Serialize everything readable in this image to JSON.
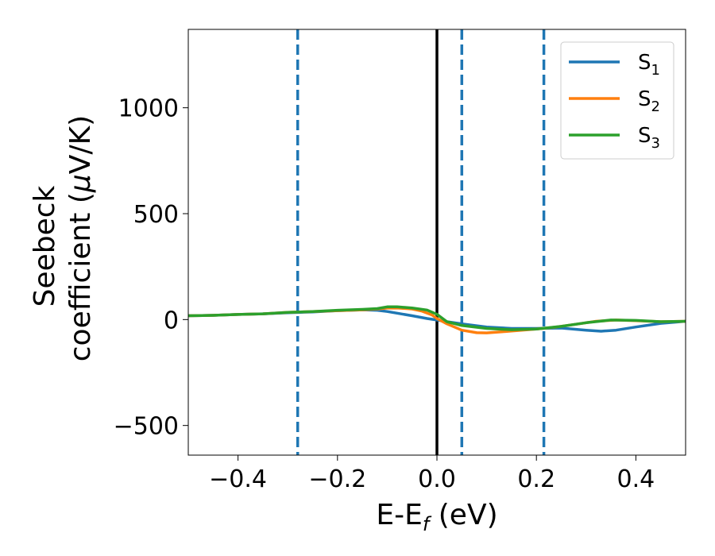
{
  "chart_data": {
    "type": "line",
    "title": "",
    "xlabel": "E-E",
    "xlabel_sub": "f",
    "xlabel_unit": " (eV)",
    "ylabel_line1": "Seebeck",
    "ylabel_line2": "coefficient  (",
    "ylabel_mu": "μ",
    "ylabel_unit": "V/K)",
    "xlim": [
      -0.5,
      0.5
    ],
    "ylim": [
      -640,
      1370
    ],
    "xticks": [
      -0.4,
      -0.2,
      0.0,
      0.2,
      0.4
    ],
    "xtick_labels": [
      "−0.4",
      "−0.2",
      "0.0",
      "0.2",
      "0.4"
    ],
    "yticks": [
      -500,
      0,
      500,
      1000
    ],
    "ytick_labels": [
      "−500",
      "0",
      "500",
      "1000"
    ],
    "grid": false,
    "legend_position": "top-right",
    "vertical_lines": [
      {
        "x": 0.0,
        "style": "solid",
        "color": "#000000"
      },
      {
        "x": -0.28,
        "style": "dashed",
        "color": "#1f77b4"
      },
      {
        "x": 0.05,
        "style": "dashed",
        "color": "#1f77b4"
      },
      {
        "x": 0.215,
        "style": "dashed",
        "color": "#1f77b4"
      }
    ],
    "series": [
      {
        "name": "S",
        "subscript": "1",
        "color": "#1f77b4",
        "points": [
          [
            -0.5,
            18
          ],
          [
            -0.45,
            20
          ],
          [
            -0.4,
            24
          ],
          [
            -0.35,
            27
          ],
          [
            -0.3,
            32
          ],
          [
            -0.25,
            36
          ],
          [
            -0.2,
            42
          ],
          [
            -0.15,
            46
          ],
          [
            -0.12,
            44
          ],
          [
            -0.1,
            38
          ],
          [
            -0.08,
            30
          ],
          [
            -0.05,
            18
          ],
          [
            -0.02,
            5
          ],
          [
            0.0,
            -2
          ],
          [
            0.02,
            -10
          ],
          [
            0.05,
            -20
          ],
          [
            0.1,
            -35
          ],
          [
            0.15,
            -42
          ],
          [
            0.2,
            -42
          ],
          [
            0.25,
            -40
          ],
          [
            0.3,
            -50
          ],
          [
            0.33,
            -55
          ],
          [
            0.36,
            -50
          ],
          [
            0.4,
            -35
          ],
          [
            0.45,
            -18
          ],
          [
            0.5,
            -8
          ]
        ]
      },
      {
        "name": "S",
        "subscript": "2",
        "color": "#ff7f0e",
        "points": [
          [
            -0.5,
            18
          ],
          [
            -0.45,
            20
          ],
          [
            -0.4,
            24
          ],
          [
            -0.35,
            27
          ],
          [
            -0.3,
            34
          ],
          [
            -0.25,
            38
          ],
          [
            -0.2,
            42
          ],
          [
            -0.15,
            46
          ],
          [
            -0.12,
            50
          ],
          [
            -0.1,
            54
          ],
          [
            -0.08,
            55
          ],
          [
            -0.05,
            50
          ],
          [
            -0.03,
            40
          ],
          [
            -0.01,
            22
          ],
          [
            0.0,
            5
          ],
          [
            0.02,
            -20
          ],
          [
            0.05,
            -50
          ],
          [
            0.08,
            -62
          ],
          [
            0.1,
            -63
          ],
          [
            0.13,
            -58
          ],
          [
            0.16,
            -52
          ],
          [
            0.2,
            -45
          ],
          [
            0.24,
            -35
          ],
          [
            0.28,
            -22
          ],
          [
            0.32,
            -8
          ],
          [
            0.36,
            -2
          ],
          [
            0.4,
            -5
          ],
          [
            0.45,
            -10
          ],
          [
            0.5,
            -8
          ]
        ]
      },
      {
        "name": "S",
        "subscript": "3",
        "color": "#2ca02c",
        "points": [
          [
            -0.5,
            18
          ],
          [
            -0.45,
            20
          ],
          [
            -0.4,
            24
          ],
          [
            -0.35,
            27
          ],
          [
            -0.3,
            34
          ],
          [
            -0.25,
            38
          ],
          [
            -0.2,
            44
          ],
          [
            -0.15,
            48
          ],
          [
            -0.12,
            52
          ],
          [
            -0.1,
            60
          ],
          [
            -0.08,
            60
          ],
          [
            -0.05,
            55
          ],
          [
            -0.02,
            45
          ],
          [
            0.0,
            25
          ],
          [
            0.02,
            -10
          ],
          [
            0.05,
            -28
          ],
          [
            0.1,
            -42
          ],
          [
            0.15,
            -48
          ],
          [
            0.2,
            -45
          ],
          [
            0.25,
            -32
          ],
          [
            0.3,
            -15
          ],
          [
            0.35,
            -2
          ],
          [
            0.4,
            -4
          ],
          [
            0.45,
            -10
          ],
          [
            0.5,
            -8
          ]
        ]
      }
    ]
  }
}
